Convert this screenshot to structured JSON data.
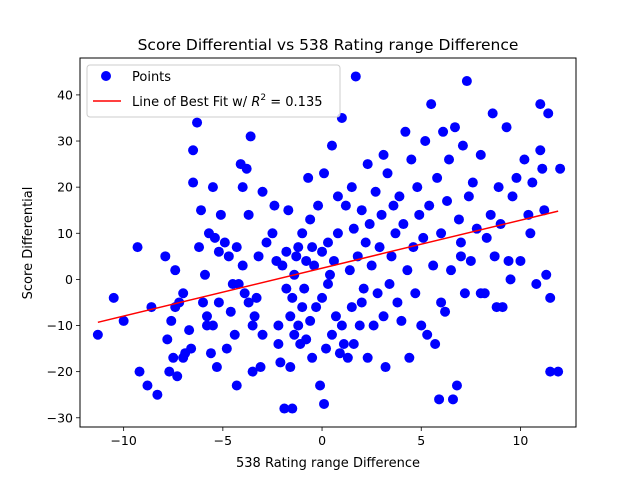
{
  "chart_data": {
    "type": "scatter",
    "title": "Score Differential vs 538 Rating range Difference",
    "xlabel": "538 Rating range Difference",
    "ylabel": "Score Differential",
    "xlim": [
      -12.2,
      12.8
    ],
    "ylim": [
      -32,
      48
    ],
    "xticks": [
      -10,
      -5,
      0,
      5,
      10
    ],
    "yticks": [
      -30,
      -20,
      -10,
      0,
      10,
      20,
      30,
      40
    ],
    "grid": false,
    "legend_position": "top-left",
    "series": [
      {
        "name": "Points",
        "color": "#0000ff",
        "marker": "circle",
        "points": [
          [
            -11.3,
            -12
          ],
          [
            -10.5,
            -4
          ],
          [
            -10.0,
            -9
          ],
          [
            -9.3,
            7
          ],
          [
            -9.2,
            -20
          ],
          [
            -8.8,
            -23
          ],
          [
            -8.6,
            -6
          ],
          [
            -8.3,
            -25
          ],
          [
            -7.9,
            5
          ],
          [
            -7.8,
            -13
          ],
          [
            -7.7,
            -20
          ],
          [
            -7.6,
            -9
          ],
          [
            -7.5,
            -17
          ],
          [
            -7.4,
            -6
          ],
          [
            -7.4,
            2
          ],
          [
            -7.3,
            -21
          ],
          [
            -7.2,
            -5
          ],
          [
            -7.0,
            -3
          ],
          [
            -7.0,
            -17
          ],
          [
            -6.9,
            -16
          ],
          [
            -6.7,
            -11
          ],
          [
            -6.6,
            -15
          ],
          [
            -6.5,
            21
          ],
          [
            -6.5,
            28
          ],
          [
            -6.3,
            34
          ],
          [
            -6.2,
            7
          ],
          [
            -6.1,
            15
          ],
          [
            -6.0,
            -5
          ],
          [
            -5.9,
            1
          ],
          [
            -5.8,
            -8
          ],
          [
            -5.8,
            -10
          ],
          [
            -5.7,
            10
          ],
          [
            -5.6,
            -16
          ],
          [
            -5.5,
            20
          ],
          [
            -5.5,
            -10
          ],
          [
            -5.4,
            9
          ],
          [
            -5.3,
            -19
          ],
          [
            -5.2,
            -5
          ],
          [
            -5.2,
            6
          ],
          [
            -5.1,
            14
          ],
          [
            -4.9,
            8
          ],
          [
            -4.8,
            -15
          ],
          [
            -4.7,
            5
          ],
          [
            -4.6,
            -7
          ],
          [
            -4.5,
            -1
          ],
          [
            -4.4,
            -12
          ],
          [
            -4.3,
            -23
          ],
          [
            -4.3,
            7
          ],
          [
            -4.2,
            -1
          ],
          [
            -4.1,
            25
          ],
          [
            -4.0,
            20
          ],
          [
            -4.0,
            3
          ],
          [
            -3.9,
            -3
          ],
          [
            -3.8,
            24
          ],
          [
            -3.7,
            -5
          ],
          [
            -3.7,
            14
          ],
          [
            -3.6,
            31
          ],
          [
            -3.5,
            -10
          ],
          [
            -3.5,
            -20
          ],
          [
            -3.4,
            -8
          ],
          [
            -3.3,
            -4
          ],
          [
            -3.2,
            5
          ],
          [
            -3.1,
            -19
          ],
          [
            -3.0,
            -12
          ],
          [
            -3.0,
            19
          ],
          [
            -2.8,
            8
          ],
          [
            -2.5,
            10
          ],
          [
            -2.4,
            16
          ],
          [
            -2.3,
            4
          ],
          [
            -2.2,
            -10
          ],
          [
            -2.2,
            -14
          ],
          [
            -2.1,
            -18
          ],
          [
            -2.0,
            3
          ],
          [
            -1.9,
            -28
          ],
          [
            -1.8,
            6
          ],
          [
            -1.8,
            -2
          ],
          [
            -1.7,
            15
          ],
          [
            -1.6,
            -8
          ],
          [
            -1.6,
            -19
          ],
          [
            -1.5,
            -28
          ],
          [
            -1.5,
            -4
          ],
          [
            -1.4,
            -12
          ],
          [
            -1.4,
            1
          ],
          [
            -1.3,
            5
          ],
          [
            -1.2,
            7
          ],
          [
            -1.2,
            -10
          ],
          [
            -1.1,
            -14
          ],
          [
            -1.0,
            -6
          ],
          [
            -1.0,
            10
          ],
          [
            -0.9,
            -2
          ],
          [
            -0.8,
            -13
          ],
          [
            -0.8,
            4
          ],
          [
            -0.7,
            22
          ],
          [
            -0.6,
            -9
          ],
          [
            -0.6,
            13
          ],
          [
            -0.5,
            7
          ],
          [
            -0.5,
            -17
          ],
          [
            -0.4,
            3
          ],
          [
            -0.3,
            -6
          ],
          [
            -0.2,
            16
          ],
          [
            -0.1,
            -23
          ],
          [
            0.0,
            6
          ],
          [
            0.0,
            -4
          ],
          [
            0.1,
            -27
          ],
          [
            0.1,
            23
          ],
          [
            0.2,
            -15
          ],
          [
            0.3,
            8
          ],
          [
            0.3,
            -1
          ],
          [
            0.4,
            1
          ],
          [
            0.5,
            29
          ],
          [
            0.5,
            -12
          ],
          [
            0.6,
            4
          ],
          [
            0.7,
            -8
          ],
          [
            0.8,
            10
          ],
          [
            0.8,
            18
          ],
          [
            0.9,
            -16
          ],
          [
            1.0,
            -10
          ],
          [
            1.0,
            35
          ],
          [
            1.1,
            -14
          ],
          [
            1.2,
            16
          ],
          [
            1.3,
            -17
          ],
          [
            1.4,
            2
          ],
          [
            1.5,
            20
          ],
          [
            1.5,
            -6
          ],
          [
            1.6,
            11
          ],
          [
            1.6,
            -14
          ],
          [
            1.7,
            44
          ],
          [
            1.8,
            5
          ],
          [
            1.9,
            -10
          ],
          [
            2.0,
            15
          ],
          [
            2.0,
            -5
          ],
          [
            2.1,
            -2
          ],
          [
            2.2,
            8
          ],
          [
            2.3,
            25
          ],
          [
            2.3,
            -17
          ],
          [
            2.4,
            12
          ],
          [
            2.5,
            3
          ],
          [
            2.6,
            -10
          ],
          [
            2.7,
            19
          ],
          [
            2.8,
            -3
          ],
          [
            2.9,
            7
          ],
          [
            3.0,
            14
          ],
          [
            3.1,
            -8
          ],
          [
            3.1,
            27
          ],
          [
            3.2,
            -19
          ],
          [
            3.3,
            23
          ],
          [
            3.4,
            -1
          ],
          [
            3.5,
            5
          ],
          [
            3.6,
            16
          ],
          [
            3.7,
            10
          ],
          [
            3.8,
            -5
          ],
          [
            3.9,
            18
          ],
          [
            4.0,
            -9
          ],
          [
            4.1,
            12
          ],
          [
            4.2,
            32
          ],
          [
            4.3,
            2
          ],
          [
            4.4,
            -17
          ],
          [
            4.5,
            26
          ],
          [
            4.6,
            7
          ],
          [
            4.7,
            -3
          ],
          [
            4.8,
            20
          ],
          [
            4.9,
            14
          ],
          [
            5.0,
            -10
          ],
          [
            5.1,
            9
          ],
          [
            5.2,
            30
          ],
          [
            5.3,
            -12
          ],
          [
            5.4,
            16
          ],
          [
            5.5,
            38
          ],
          [
            5.6,
            3
          ],
          [
            5.7,
            -14
          ],
          [
            5.8,
            22
          ],
          [
            5.9,
            -26
          ],
          [
            6.0,
            10
          ],
          [
            6.1,
            32
          ],
          [
            6.2,
            -7
          ],
          [
            6.3,
            17
          ],
          [
            6.4,
            26
          ],
          [
            6.5,
            2
          ],
          [
            6.6,
            -26
          ],
          [
            6.7,
            33
          ],
          [
            6.8,
            -23
          ],
          [
            6.9,
            13
          ],
          [
            7.0,
            8
          ],
          [
            7.1,
            29
          ],
          [
            7.2,
            -3
          ],
          [
            7.3,
            43
          ],
          [
            7.4,
            18
          ],
          [
            7.5,
            4
          ],
          [
            7.6,
            21
          ],
          [
            7.8,
            11
          ],
          [
            8.0,
            27
          ],
          [
            8.2,
            -3
          ],
          [
            8.3,
            9
          ],
          [
            8.5,
            14
          ],
          [
            8.6,
            36
          ],
          [
            8.7,
            5
          ],
          [
            8.8,
            -6
          ],
          [
            8.9,
            20
          ],
          [
            9.0,
            12
          ],
          [
            9.1,
            -6
          ],
          [
            9.3,
            33
          ],
          [
            9.4,
            4
          ],
          [
            9.6,
            18
          ],
          [
            9.8,
            22
          ],
          [
            10.0,
            4
          ],
          [
            10.2,
            26
          ],
          [
            10.4,
            14
          ],
          [
            10.6,
            21
          ],
          [
            10.8,
            -1
          ],
          [
            11.0,
            38
          ],
          [
            11.0,
            28
          ],
          [
            11.1,
            24
          ],
          [
            11.2,
            15
          ],
          [
            11.3,
            1
          ],
          [
            11.4,
            36
          ],
          [
            11.5,
            -4
          ],
          [
            11.5,
            -20
          ],
          [
            11.9,
            -20
          ],
          [
            12.0,
            24
          ],
          [
            10.5,
            10
          ],
          [
            9.5,
            0
          ],
          [
            8.0,
            -3
          ],
          [
            7.0,
            5
          ],
          [
            6.0,
            -5
          ]
        ]
      },
      {
        "name": "Line of Best Fit w/ R^2 = 0.135",
        "legend_prefix": "Line of Best Fit w/ ",
        "legend_math": "R",
        "legend_sup": "2",
        "legend_suffix": " = 0.135",
        "color": "#ff0000",
        "type": "line",
        "points": [
          [
            -11.3,
            -9.3
          ],
          [
            11.9,
            14.8
          ]
        ]
      }
    ]
  }
}
